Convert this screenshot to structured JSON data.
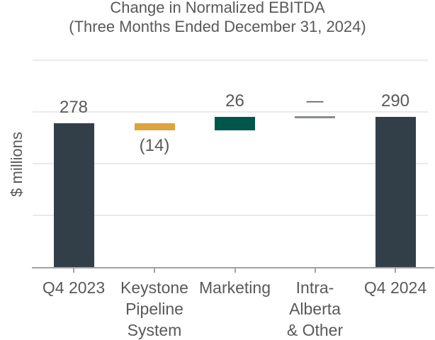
{
  "chart_data": {
    "type": "waterfall",
    "title": "Change in Normalized EBITDA",
    "subtitle": "(Three Months Ended December 31, 2024)",
    "ylabel": "$ millions",
    "ylim": [
      0,
      400
    ],
    "gridline_step": 100,
    "grid": true,
    "legend": false,
    "y_tick_labels_shown": false,
    "categories": [
      "Q4 2023",
      "Keystone Pipeline System",
      "Marketing",
      "Intra-Alberta & Other",
      "Q4 2024"
    ],
    "category_label_lines": [
      [
        "Q4 2023"
      ],
      [
        "Keystone",
        "Pipeline",
        "System"
      ],
      [
        "Marketing"
      ],
      [
        "Intra-",
        "Alberta",
        "& Other"
      ],
      [
        "Q4 2024"
      ]
    ],
    "series": [
      {
        "category": "Q4 2023",
        "value": 278,
        "role": "total",
        "label": "278"
      },
      {
        "category": "Keystone Pipeline System",
        "value": -14,
        "role": "change",
        "label": "(14)"
      },
      {
        "category": "Marketing",
        "value": 26,
        "role": "change",
        "label": "26"
      },
      {
        "category": "Intra-Alberta & Other",
        "value": 0,
        "role": "change",
        "label": "—"
      },
      {
        "category": "Q4 2024",
        "value": 290,
        "role": "total",
        "label": "290"
      }
    ],
    "colors": {
      "total": "#333F48",
      "increase": "#00564A",
      "decrease": "#DCA43E",
      "zero_marker": "#8A8D8F",
      "gridline": "#EAEAEA",
      "axis": "#A0A2A5",
      "text": "#58595B"
    }
  }
}
